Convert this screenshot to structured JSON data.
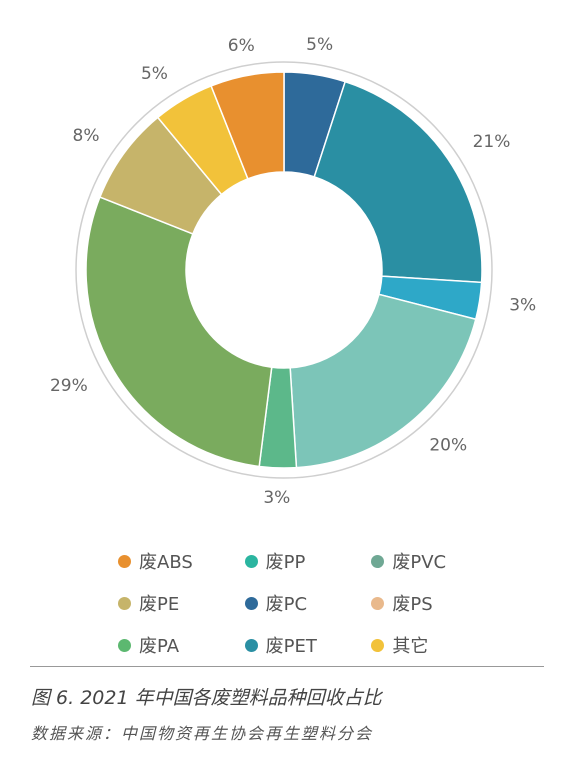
{
  "chart_data": {
    "type": "donut",
    "slices": [
      {
        "category": "废PC",
        "value": 5,
        "label": "5%",
        "color": "#2e6a9a"
      },
      {
        "category": "废PET",
        "value": 21,
        "label": "21%",
        "color": "#2a8fa3"
      },
      {
        "category": "废PP",
        "value": 3,
        "label": "3%",
        "color": "#2ea8c8"
      },
      {
        "category": "",
        "value": 20,
        "label": "20%",
        "color": "#7cc5b8"
      },
      {
        "category": "废PA",
        "value": 3,
        "label": "3%",
        "color": "#5cb88a"
      },
      {
        "category": "",
        "value": 29,
        "label": "29%",
        "color": "#7aab5e"
      },
      {
        "category": "废PE",
        "value": 8,
        "label": "8%",
        "color": "#c6b46a"
      },
      {
        "category": "其它",
        "value": 5,
        "label": "5%",
        "color": "#f2c23a"
      },
      {
        "category": "废ABS",
        "value": 6,
        "label": "6%",
        "color": "#e8902f"
      }
    ]
  },
  "legend": [
    {
      "label": "废ABS",
      "color": "#e8902f"
    },
    {
      "label": "废PP",
      "color": "#2bb5a0"
    },
    {
      "label": "废PVC",
      "color": "#6fa894"
    },
    {
      "label": "废PE",
      "color": "#c6b46a"
    },
    {
      "label": "废PC",
      "color": "#2e6a9a"
    },
    {
      "label": "废PS",
      "color": "#e9b98c"
    },
    {
      "label": "废PA",
      "color": "#5cb870"
    },
    {
      "label": "废PET",
      "color": "#2a8fa3"
    },
    {
      "label": "其它",
      "color": "#f2c23a"
    }
  ],
  "figure": {
    "title": "图 6. 2021 年中国各废塑料品种回收占比",
    "source": "数据来源：中国物资再生协会再生塑料分会"
  }
}
